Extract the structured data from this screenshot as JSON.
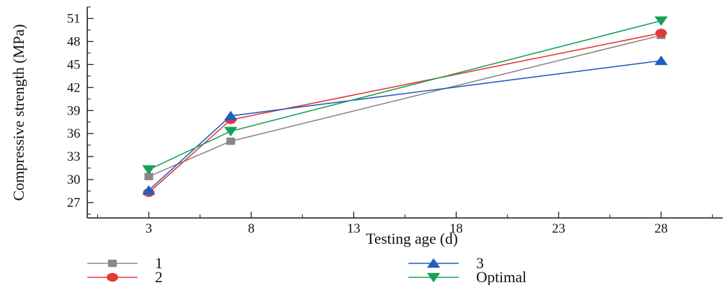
{
  "chart_data": {
    "type": "line",
    "title": "",
    "xlabel": "Testing age (d)",
    "ylabel": "Compressive strength (MPa)",
    "xlim": [
      0,
      31
    ],
    "ylim": [
      25,
      52.5
    ],
    "xticks": [
      3,
      8,
      13,
      18,
      23,
      28
    ],
    "yticks": [
      27,
      30,
      33,
      36,
      39,
      42,
      45,
      48,
      51
    ],
    "grid": false,
    "legend_position": "bottom",
    "series": [
      {
        "name": "1",
        "color": "#888888",
        "marker": "square",
        "points": [
          [
            3,
            30.4
          ],
          [
            7,
            35.0
          ],
          [
            28,
            48.8
          ]
        ]
      },
      {
        "name": "2",
        "color": "#e53935",
        "marker": "circle",
        "points": [
          [
            3,
            28.3
          ],
          [
            7,
            37.8
          ],
          [
            28,
            49.1
          ]
        ]
      },
      {
        "name": "3",
        "color": "#1f5fbf",
        "marker": "triangle-up",
        "points": [
          [
            3,
            28.6
          ],
          [
            7,
            38.3
          ],
          [
            28,
            45.5
          ]
        ]
      },
      {
        "name": "Optimal",
        "color": "#18a058",
        "marker": "triangle-down",
        "points": [
          [
            3,
            31.3
          ],
          [
            7,
            36.3
          ],
          [
            28,
            50.7
          ]
        ]
      }
    ]
  }
}
